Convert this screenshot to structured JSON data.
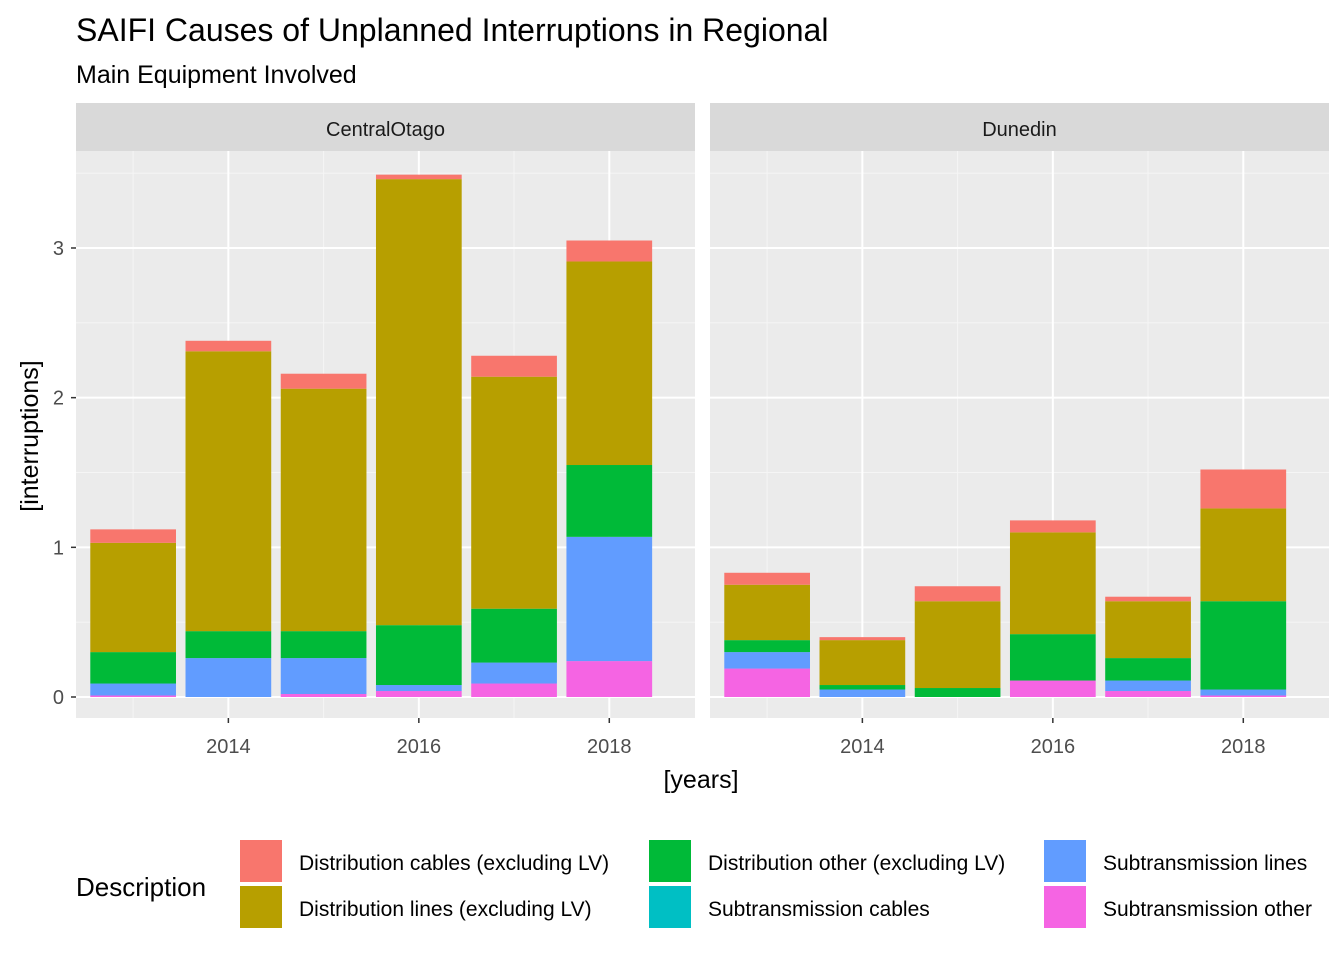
{
  "chart_data": {
    "type": "bar",
    "stacked": true,
    "title": "SAIFI Causes of Unplanned Interruptions in Regional",
    "subtitle": "Main Equipment Involved",
    "xlabel": "[years]",
    "ylabel": "[interruptions]",
    "ylim": [
      -0.1,
      3.65
    ],
    "y_ticks": [
      0,
      1,
      2,
      3
    ],
    "x_ticks": [
      2014,
      2016,
      2018
    ],
    "years": [
      2013,
      2014,
      2015,
      2016,
      2017,
      2018
    ],
    "grid": true,
    "legend_position": "bottom",
    "legend_title": "Description",
    "stack_order": [
      "Subtransmission other",
      "Subtransmission lines",
      "Subtransmission cables",
      "Distribution other (excluding LV)",
      "Distribution lines (excluding LV)",
      "Distribution cables (excluding LV)"
    ],
    "legend": [
      {
        "name": "Distribution cables (excluding LV)",
        "color": "#F8766D"
      },
      {
        "name": "Distribution lines (excluding LV)",
        "color": "#B79F00"
      },
      {
        "name": "Distribution other (excluding LV)",
        "color": "#00BA38"
      },
      {
        "name": "Subtransmission cables",
        "color": "#00BFC4"
      },
      {
        "name": "Subtransmission lines",
        "color": "#619CFF"
      },
      {
        "name": "Subtransmission other",
        "color": "#F564E3"
      }
    ],
    "panels": [
      {
        "name": "CentralOtago",
        "series": [
          {
            "name": "Subtransmission other",
            "values": [
              0.01,
              0.0,
              0.02,
              0.04,
              0.09,
              0.24
            ]
          },
          {
            "name": "Subtransmission lines",
            "values": [
              0.08,
              0.26,
              0.24,
              0.04,
              0.14,
              0.83
            ]
          },
          {
            "name": "Subtransmission cables",
            "values": [
              0,
              0,
              0,
              0,
              0,
              0
            ]
          },
          {
            "name": "Distribution other (excluding LV)",
            "values": [
              0.21,
              0.18,
              0.18,
              0.4,
              0.36,
              0.48
            ]
          },
          {
            "name": "Distribution lines (excluding LV)",
            "values": [
              0.73,
              1.87,
              1.62,
              2.98,
              1.55,
              1.36
            ]
          },
          {
            "name": "Distribution cables (excluding LV)",
            "values": [
              0.09,
              0.07,
              0.1,
              0.03,
              0.14,
              0.14
            ]
          }
        ]
      },
      {
        "name": "Dunedin",
        "series": [
          {
            "name": "Subtransmission other",
            "values": [
              0.19,
              0.0,
              0.0,
              0.11,
              0.04,
              0.01
            ]
          },
          {
            "name": "Subtransmission lines",
            "values": [
              0.11,
              0.05,
              0.0,
              0.0,
              0.07,
              0.04
            ]
          },
          {
            "name": "Subtransmission cables",
            "values": [
              0,
              0,
              0,
              0,
              0,
              0
            ]
          },
          {
            "name": "Distribution other (excluding LV)",
            "values": [
              0.08,
              0.03,
              0.06,
              0.31,
              0.15,
              0.59
            ]
          },
          {
            "name": "Distribution lines (excluding LV)",
            "values": [
              0.37,
              0.3,
              0.58,
              0.68,
              0.38,
              0.62
            ]
          },
          {
            "name": "Distribution cables (excluding LV)",
            "values": [
              0.08,
              0.02,
              0.1,
              0.08,
              0.03,
              0.26
            ]
          }
        ]
      }
    ]
  }
}
